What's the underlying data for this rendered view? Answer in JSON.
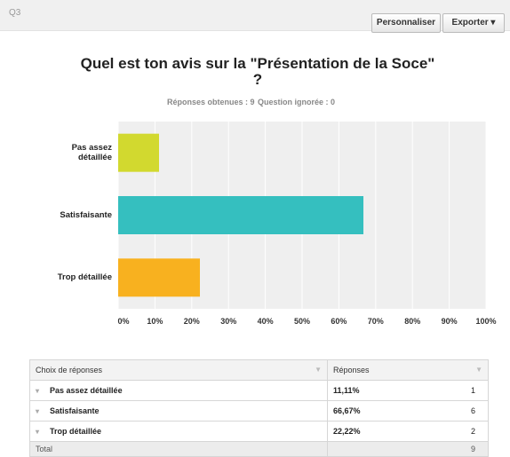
{
  "header": {
    "question": "Q3",
    "buttons": [
      "Personnaliser",
      "Exporter"
    ]
  },
  "chart_data": {
    "type": "hbar",
    "title": "Quel est ton avis sur la \"Présentation de la Soce\" ?",
    "subtitle": [
      "Réponses obtenues : 9",
      "Question ignorée : 0"
    ],
    "categories": [
      "Pas assez détaillée",
      "Satisfaisante",
      "Trop détaillée"
    ],
    "values": [
      11.11,
      66.67,
      22.22
    ],
    "colors": [
      "#d2d92f",
      "#35bfbf",
      "#f8b11f"
    ],
    "xlim": [
      0,
      100
    ],
    "xticks": [
      {
        "value": 0,
        "label": "0%"
      },
      {
        "value": 10,
        "label": "10%"
      },
      {
        "value": 20,
        "label": "20%"
      },
      {
        "value": 30,
        "label": "30%"
      },
      {
        "value": 40,
        "label": "40%"
      },
      {
        "value": 50,
        "label": "50%"
      },
      {
        "value": 60,
        "label": "60%"
      },
      {
        "value": 70,
        "label": "70%"
      },
      {
        "value": 80,
        "label": "80%"
      },
      {
        "value": 90,
        "label": "90%"
      },
      {
        "value": 100,
        "label": "100%"
      }
    ],
    "grid": true
  },
  "table": {
    "headers": [
      "Choix de réponses",
      "Réponses"
    ],
    "rows": [
      [
        "Pas assez détaillée",
        "11,11%",
        1
      ],
      [
        "Satisfaisante",
        "66,67%",
        6
      ],
      [
        "Trop détaillée",
        "22,22%",
        2
      ]
    ],
    "total": [
      "Total",
      9
    ]
  }
}
